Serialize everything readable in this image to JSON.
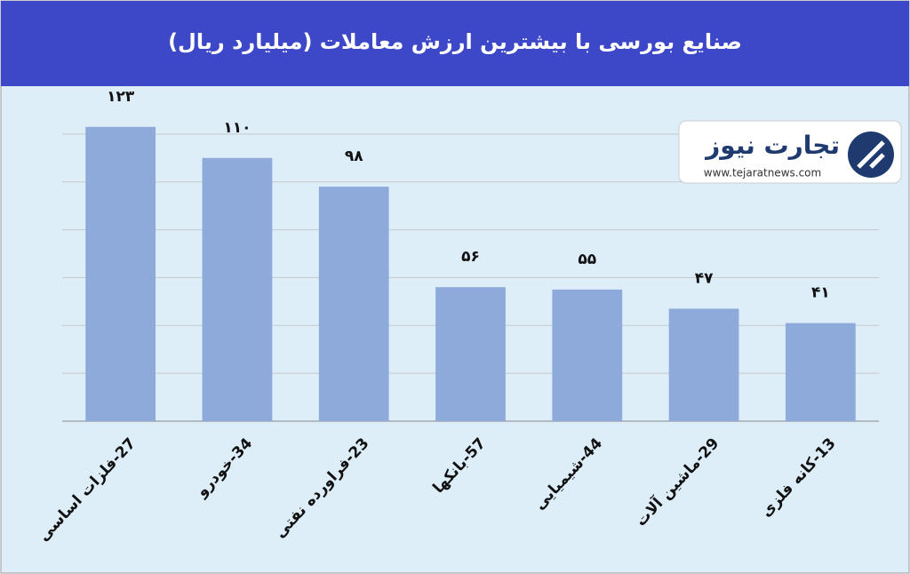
{
  "chart_data": {
    "type": "bar",
    "title": "صنایع بورسی با بیشترین ارزش معاملات  (میلیارد ریال)",
    "categories": [
      "27-فلزات اساسی",
      "34-خودرو",
      "23-فراورده نفتی",
      "57-بانکها",
      "44-شیمیایی",
      "29-ماشین آلات",
      "13-کانه فلزی"
    ],
    "values": [
      123,
      110,
      98,
      56,
      55,
      47,
      41
    ],
    "value_labels": [
      "۱۲۳",
      "۱۱۰",
      "۹۸",
      "۵۶",
      "۵۵",
      "۴۷",
      "۴۱"
    ],
    "color": "#8eaadb",
    "ylim": [
      0,
      140
    ],
    "yticks": [
      0,
      20,
      40,
      60,
      80,
      100,
      120
    ],
    "grid": true
  },
  "logo": {
    "name": "تجارت نیوز",
    "url": "www.tejaratnews.com"
  }
}
